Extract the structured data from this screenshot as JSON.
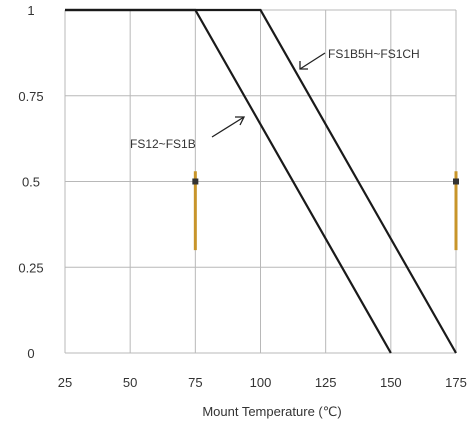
{
  "chart_data": {
    "type": "line",
    "title": "",
    "xlabel": "Mount Temperature (℃)",
    "ylabel": "",
    "xlim": [
      25,
      175
    ],
    "ylim": [
      0,
      1
    ],
    "x_ticks": [
      25,
      50,
      75,
      100,
      125,
      150,
      175
    ],
    "x_tick_labels": [
      "25",
      "50",
      "75",
      "100",
      "125",
      "150",
      "175"
    ],
    "y_ticks": [
      0,
      0.25,
      0.5,
      0.75,
      1
    ],
    "y_tick_labels": [
      "0",
      "0.25",
      "0.5",
      "0.75",
      "1"
    ],
    "grid": true,
    "series": [
      {
        "name": "FS12~FS1B",
        "x": [
          25,
          75,
          150
        ],
        "y": [
          1,
          1,
          0
        ],
        "color": "#1a1a1a"
      },
      {
        "name": "FS1B5H~FS1CH",
        "x": [
          25,
          100,
          175
        ],
        "y": [
          1,
          1,
          0
        ],
        "color": "#1a1a1a"
      }
    ],
    "annotations": [
      {
        "text": "FS12~FS1B",
        "series": 0
      },
      {
        "text": "FS1B5H~FS1CH",
        "series": 1
      }
    ],
    "markers": [
      {
        "x": 75,
        "y_from": 0.3,
        "y_to": 0.53,
        "color": "#c8952a"
      },
      {
        "x": 175,
        "y_from": 0.3,
        "y_to": 0.53,
        "color": "#c8952a"
      }
    ]
  }
}
